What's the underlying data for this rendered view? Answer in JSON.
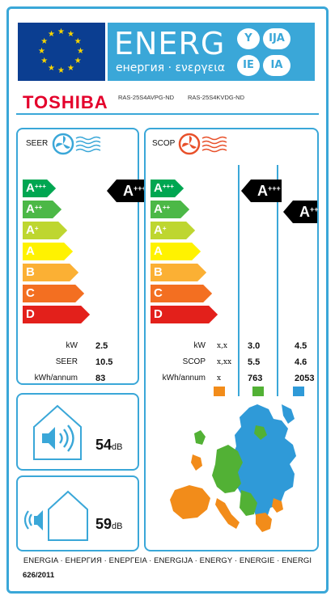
{
  "header": {
    "energ_word": "ENERG",
    "energ_sub": "енергия · ενεργεια",
    "languages": [
      "Y",
      "IJA",
      "IE",
      "IA"
    ]
  },
  "brand": "TOSHIBA",
  "models": [
    "RAS-25S4AVPG-ND",
    "RAS-25S4KVDG-ND"
  ],
  "seer": {
    "title": "SEER",
    "scale": [
      {
        "base": "A",
        "sup": "+++",
        "color": "#00a651"
      },
      {
        "base": "A",
        "sup": "++",
        "color": "#4cb847"
      },
      {
        "base": "A",
        "sup": "+",
        "color": "#bed630"
      },
      {
        "base": "A",
        "sup": "",
        "color": "#fff200"
      },
      {
        "base": "B",
        "sup": "",
        "color": "#fbb034"
      },
      {
        "base": "C",
        "sup": "",
        "color": "#f36f21"
      },
      {
        "base": "D",
        "sup": "",
        "color": "#e3201b"
      }
    ],
    "rating": {
      "base": "A",
      "sup": "+++"
    },
    "rows": [
      {
        "label": "kW",
        "value": "2.5"
      },
      {
        "label": "SEER",
        "value": "10.5"
      },
      {
        "label": "kWh/annum",
        "value": "83"
      }
    ]
  },
  "scop": {
    "title": "SCOP",
    "scale": [
      {
        "base": "A",
        "sup": "+++",
        "color": "#00a651"
      },
      {
        "base": "A",
        "sup": "++",
        "color": "#4cb847"
      },
      {
        "base": "A",
        "sup": "+",
        "color": "#bed630"
      },
      {
        "base": "A",
        "sup": "",
        "color": "#fff200"
      },
      {
        "base": "B",
        "sup": "",
        "color": "#fbb034"
      },
      {
        "base": "C",
        "sup": "",
        "color": "#f36f21"
      },
      {
        "base": "D",
        "sup": "",
        "color": "#e3201b"
      }
    ],
    "rating_average": {
      "base": "A",
      "sup": "+++"
    },
    "rating_warmer": {
      "base": "A",
      "sup": "++"
    },
    "rows": [
      {
        "label": "kW",
        "code": "x,x",
        "average": "3.0",
        "warmer": "4.5"
      },
      {
        "label": "SCOP",
        "code": "x,xx",
        "average": "5.5",
        "warmer": "4.6"
      },
      {
        "label": "kWh/annum",
        "code": "x",
        "average": "763",
        "warmer": "2053"
      }
    ],
    "zone_colors": {
      "colder": "#f28c1a",
      "average": "#52b135",
      "warmer": "#2f9ad8"
    }
  },
  "noise": {
    "indoor_value": "54",
    "indoor_unit": "dB",
    "outdoor_value": "59",
    "outdoor_unit": "dB"
  },
  "footer": {
    "languages_line": "ENERGIA · ЕНЕРГИЯ · ΕΝΕΡΓΕΙΑ · ENERGIJA · ENERGY · ENERGIE · ENERGI",
    "regulation": "626/2011"
  }
}
